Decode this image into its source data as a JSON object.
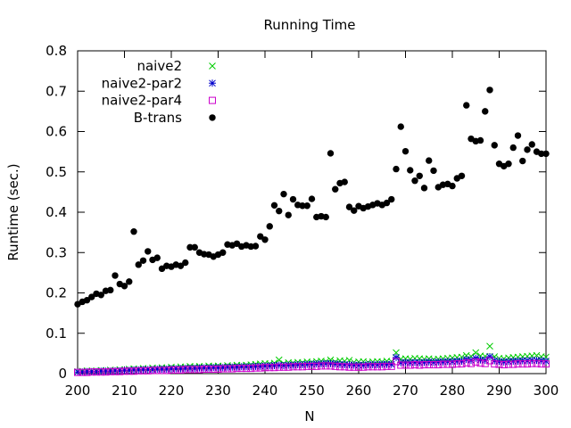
{
  "chart_data": {
    "type": "scatter",
    "title": "Running Time",
    "xlabel": "N",
    "ylabel": "Runtime (sec.)",
    "xlim": [
      200,
      300
    ],
    "ylim": [
      0,
      0.8
    ],
    "xticks": [
      "200",
      "210",
      "220",
      "230",
      "240",
      "250",
      "260",
      "270",
      "280",
      "290",
      "300"
    ],
    "yticks": [
      "0",
      "0.1",
      "0.2",
      "0.3",
      "0.4",
      "0.5",
      "0.6",
      "0.7",
      "0.8"
    ],
    "grid": false,
    "legend_position": "top-left",
    "x": [
      200,
      201,
      202,
      203,
      204,
      205,
      206,
      207,
      208,
      209,
      210,
      211,
      212,
      213,
      214,
      215,
      216,
      217,
      218,
      219,
      220,
      221,
      222,
      223,
      224,
      225,
      226,
      227,
      228,
      229,
      230,
      231,
      232,
      233,
      234,
      235,
      236,
      237,
      238,
      239,
      240,
      241,
      242,
      243,
      244,
      245,
      246,
      247,
      248,
      249,
      250,
      251,
      252,
      253,
      254,
      255,
      256,
      257,
      258,
      259,
      260,
      261,
      262,
      263,
      264,
      265,
      266,
      267,
      268,
      269,
      270,
      271,
      272,
      273,
      274,
      275,
      276,
      277,
      278,
      279,
      280,
      281,
      282,
      283,
      284,
      285,
      286,
      287,
      288,
      289,
      290,
      291,
      292,
      293,
      294,
      295,
      296,
      297,
      298,
      299,
      300
    ],
    "series": [
      {
        "name": "naive2",
        "marker": "x",
        "color": "#00cc00",
        "values": [
          0.005,
          0.006,
          0.007,
          0.006,
          0.007,
          0.008,
          0.007,
          0.009,
          0.008,
          0.01,
          0.009,
          0.011,
          0.012,
          0.011,
          0.013,
          0.012,
          0.014,
          0.013,
          0.015,
          0.014,
          0.016,
          0.015,
          0.017,
          0.016,
          0.018,
          0.017,
          0.018,
          0.017,
          0.019,
          0.018,
          0.019,
          0.018,
          0.02,
          0.019,
          0.021,
          0.02,
          0.021,
          0.022,
          0.023,
          0.024,
          0.025,
          0.024,
          0.026,
          0.034,
          0.025,
          0.027,
          0.026,
          0.028,
          0.027,
          0.029,
          0.028,
          0.03,
          0.031,
          0.03,
          0.034,
          0.029,
          0.032,
          0.031,
          0.033,
          0.028,
          0.029,
          0.03,
          0.028,
          0.029,
          0.03,
          0.029,
          0.031,
          0.03,
          0.052,
          0.036,
          0.037,
          0.036,
          0.038,
          0.037,
          0.036,
          0.037,
          0.035,
          0.036,
          0.037,
          0.038,
          0.039,
          0.04,
          0.041,
          0.045,
          0.043,
          0.052,
          0.044,
          0.043,
          0.068,
          0.042,
          0.038,
          0.037,
          0.039,
          0.04,
          0.041,
          0.042,
          0.043,
          0.044,
          0.045,
          0.042,
          0.041
        ]
      },
      {
        "name": "naive2-par2",
        "marker": "star",
        "color": "#0000cc",
        "values": [
          0.004,
          0.004,
          0.005,
          0.005,
          0.005,
          0.006,
          0.006,
          0.006,
          0.007,
          0.007,
          0.008,
          0.008,
          0.009,
          0.009,
          0.01,
          0.01,
          0.01,
          0.011,
          0.011,
          0.011,
          0.012,
          0.012,
          0.012,
          0.013,
          0.013,
          0.013,
          0.014,
          0.014,
          0.014,
          0.015,
          0.015,
          0.015,
          0.016,
          0.016,
          0.016,
          0.017,
          0.017,
          0.017,
          0.018,
          0.018,
          0.019,
          0.019,
          0.02,
          0.021,
          0.02,
          0.021,
          0.021,
          0.022,
          0.022,
          0.023,
          0.023,
          0.024,
          0.024,
          0.025,
          0.025,
          0.024,
          0.023,
          0.022,
          0.022,
          0.021,
          0.021,
          0.021,
          0.022,
          0.022,
          0.022,
          0.023,
          0.023,
          0.023,
          0.04,
          0.027,
          0.028,
          0.027,
          0.028,
          0.027,
          0.028,
          0.029,
          0.028,
          0.029,
          0.029,
          0.03,
          0.03,
          0.031,
          0.031,
          0.035,
          0.033,
          0.038,
          0.034,
          0.033,
          0.042,
          0.032,
          0.03,
          0.029,
          0.03,
          0.031,
          0.031,
          0.032,
          0.032,
          0.033,
          0.033,
          0.032,
          0.031
        ]
      },
      {
        "name": "naive2-par4",
        "marker": "square",
        "color": "#cc00cc",
        "values": [
          0.003,
          0.003,
          0.003,
          0.004,
          0.004,
          0.004,
          0.004,
          0.005,
          0.005,
          0.005,
          0.006,
          0.006,
          0.006,
          0.007,
          0.007,
          0.007,
          0.008,
          0.008,
          0.008,
          0.008,
          0.009,
          0.009,
          0.009,
          0.01,
          0.01,
          0.01,
          0.01,
          0.011,
          0.011,
          0.011,
          0.011,
          0.012,
          0.012,
          0.012,
          0.013,
          0.013,
          0.013,
          0.013,
          0.014,
          0.014,
          0.015,
          0.015,
          0.015,
          0.016,
          0.016,
          0.016,
          0.017,
          0.017,
          0.017,
          0.018,
          0.018,
          0.018,
          0.019,
          0.019,
          0.019,
          0.018,
          0.017,
          0.017,
          0.016,
          0.016,
          0.016,
          0.016,
          0.017,
          0.017,
          0.017,
          0.017,
          0.018,
          0.018,
          0.03,
          0.021,
          0.021,
          0.021,
          0.022,
          0.021,
          0.022,
          0.022,
          0.022,
          0.022,
          0.023,
          0.023,
          0.023,
          0.024,
          0.024,
          0.027,
          0.025,
          0.029,
          0.026,
          0.025,
          0.032,
          0.024,
          0.023,
          0.022,
          0.023,
          0.023,
          0.024,
          0.024,
          0.024,
          0.025,
          0.025,
          0.024,
          0.024
        ]
      },
      {
        "name": "B-trans",
        "marker": "dot",
        "color": "#000000",
        "values": [
          0.172,
          0.178,
          0.182,
          0.19,
          0.198,
          0.195,
          0.205,
          0.207,
          0.243,
          0.222,
          0.217,
          0.228,
          0.352,
          0.27,
          0.28,
          0.303,
          0.282,
          0.287,
          0.26,
          0.267,
          0.265,
          0.27,
          0.267,
          0.275,
          0.313,
          0.313,
          0.3,
          0.296,
          0.295,
          0.29,
          0.295,
          0.3,
          0.32,
          0.318,
          0.322,
          0.315,
          0.318,
          0.315,
          0.316,
          0.34,
          0.332,
          0.365,
          0.417,
          0.403,
          0.445,
          0.393,
          0.432,
          0.418,
          0.416,
          0.416,
          0.433,
          0.388,
          0.39,
          0.388,
          0.546,
          0.457,
          0.472,
          0.475,
          0.413,
          0.404,
          0.415,
          0.41,
          0.414,
          0.418,
          0.422,
          0.418,
          0.423,
          0.432,
          0.507,
          0.612,
          0.551,
          0.504,
          0.478,
          0.49,
          0.46,
          0.528,
          0.503,
          0.462,
          0.468,
          0.47,
          0.465,
          0.484,
          0.49,
          0.665,
          0.582,
          0.576,
          0.578,
          0.65,
          0.703,
          0.566,
          0.52,
          0.514,
          0.52,
          0.56,
          0.59,
          0.527,
          0.555,
          0.568,
          0.55,
          0.545,
          0.545
        ]
      }
    ]
  }
}
